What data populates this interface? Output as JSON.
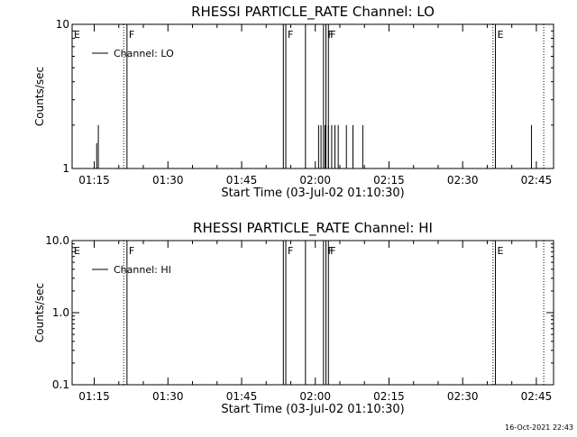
{
  "chart_data": [
    {
      "type": "line",
      "title": "RHESSI PARTICLE_RATE Channel: LO",
      "xlabel": "Start Time (03-Jul-02 01:10:30)",
      "ylabel": "Counts/sec",
      "y_scale": "log",
      "ylim": [
        1,
        10
      ],
      "y_ticks": [
        {
          "v": 1,
          "label": "1"
        },
        {
          "v": 10,
          "label": "10"
        }
      ],
      "xlim": [
        "01:10:30",
        "02:48:30"
      ],
      "x_ticks": [
        "01:15",
        "01:30",
        "01:45",
        "02:00",
        "02:15",
        "02:30",
        "02:45"
      ],
      "legend": {
        "label": "Channel: LO",
        "position": "top-left"
      },
      "markers": [
        {
          "t": "01:10:30",
          "label": "E",
          "style": "dotted"
        },
        {
          "t": "01:21:00",
          "label": "",
          "style": "dotted"
        },
        {
          "t": "01:21:40",
          "label": "F",
          "style": "solid"
        },
        {
          "t": "01:53:30",
          "label": "",
          "style": "solid"
        },
        {
          "t": "01:54:00",
          "label": "F",
          "style": "solid"
        },
        {
          "t": "01:58:00",
          "label": "",
          "style": "solid"
        },
        {
          "t": "02:01:40",
          "label": "",
          "style": "solid"
        },
        {
          "t": "02:02:10",
          "label": "F",
          "style": "solid"
        },
        {
          "t": "02:02:40",
          "label": "F",
          "style": "solid"
        },
        {
          "t": "02:36:10",
          "label": "",
          "style": "dotted"
        },
        {
          "t": "02:36:40",
          "label": "E",
          "style": "solid"
        },
        {
          "t": "02:46:30",
          "label": "",
          "style": "dotted"
        }
      ],
      "series": [
        {
          "spikes": [
            {
              "t": "01:15:30",
              "v": 1.5
            },
            {
              "t": "01:15:50",
              "v": 2
            },
            {
              "t": "02:00:40",
              "v": 2
            },
            {
              "t": "02:01:10",
              "v": 2
            },
            {
              "t": "02:02:00",
              "v": 2
            },
            {
              "t": "02:02:40",
              "v": 2
            },
            {
              "t": "02:03:20",
              "v": 2
            },
            {
              "t": "02:04:00",
              "v": 2
            },
            {
              "t": "02:04:40",
              "v": 2
            },
            {
              "t": "02:06:20",
              "v": 2
            },
            {
              "t": "02:07:40",
              "v": 2
            },
            {
              "t": "02:09:40",
              "v": 2
            },
            {
              "t": "02:44:00",
              "v": 2
            }
          ]
        }
      ]
    },
    {
      "type": "line",
      "title": "RHESSI PARTICLE_RATE Channel: HI",
      "xlabel": "Start Time (03-Jul-02 01:10:30)",
      "ylabel": "Counts/sec",
      "y_scale": "log",
      "ylim": [
        0.1,
        10
      ],
      "y_ticks": [
        {
          "v": 0.1,
          "label": "0.1"
        },
        {
          "v": 1,
          "label": "1.0"
        },
        {
          "v": 10,
          "label": "10.0"
        }
      ],
      "xlim": [
        "01:10:30",
        "02:48:30"
      ],
      "x_ticks": [
        "01:15",
        "01:30",
        "01:45",
        "02:00",
        "02:15",
        "02:30",
        "02:45"
      ],
      "legend": {
        "label": "Channel: HI",
        "position": "top-left"
      },
      "markers": [
        {
          "t": "01:10:30",
          "label": "E",
          "style": "dotted"
        },
        {
          "t": "01:21:00",
          "label": "",
          "style": "dotted"
        },
        {
          "t": "01:21:40",
          "label": "F",
          "style": "solid"
        },
        {
          "t": "01:53:30",
          "label": "",
          "style": "solid"
        },
        {
          "t": "01:54:00",
          "label": "F",
          "style": "solid"
        },
        {
          "t": "01:58:00",
          "label": "",
          "style": "solid"
        },
        {
          "t": "02:01:40",
          "label": "",
          "style": "solid"
        },
        {
          "t": "02:02:10",
          "label": "F",
          "style": "solid"
        },
        {
          "t": "02:02:40",
          "label": "F",
          "style": "solid"
        },
        {
          "t": "02:36:10",
          "label": "",
          "style": "dotted"
        },
        {
          "t": "02:36:40",
          "label": "E",
          "style": "solid"
        },
        {
          "t": "02:46:30",
          "label": "",
          "style": "dotted"
        }
      ],
      "series": [
        {
          "spikes": []
        }
      ]
    }
  ],
  "footer": {
    "timestamp": "16-Oct-2021 22:43"
  }
}
